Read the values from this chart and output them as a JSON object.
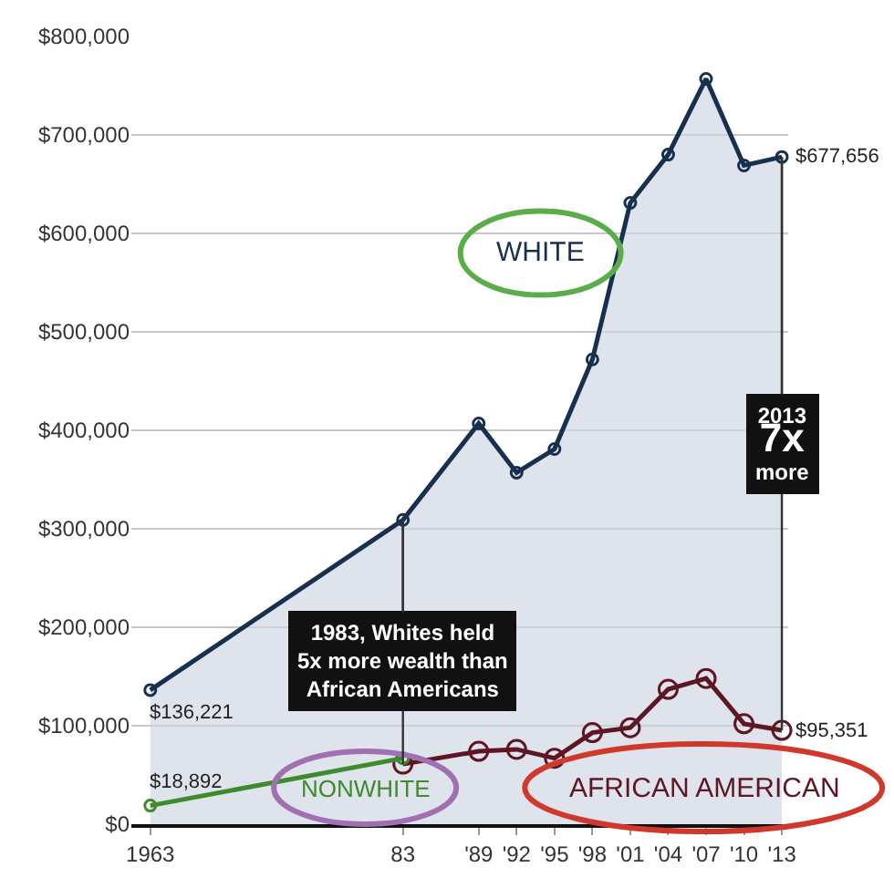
{
  "chart_data": {
    "type": "line",
    "legend": false,
    "grid": "y",
    "marker": "circle",
    "xlim": [
      1961.5,
      2013.5
    ],
    "xticks": [
      {
        "value": 1963,
        "label": "1963"
      },
      {
        "value": 1983,
        "label": "83"
      },
      {
        "value": 1989,
        "label": "'89"
      },
      {
        "value": 1992,
        "label": "'92"
      },
      {
        "value": 1995,
        "label": "'95"
      },
      {
        "value": 1998,
        "label": "'98"
      },
      {
        "value": 2001,
        "label": "'01"
      },
      {
        "value": 2004,
        "label": "'04"
      },
      {
        "value": 2007,
        "label": "'07"
      },
      {
        "value": 2010,
        "label": "'10"
      },
      {
        "value": 2013,
        "label": "'13"
      }
    ],
    "ylim": [
      0,
      800000
    ],
    "yticks": [
      {
        "value": 0,
        "label": "$0"
      },
      {
        "value": 100000,
        "label": "$100,000"
      },
      {
        "value": 200000,
        "label": "$200,000"
      },
      {
        "value": 300000,
        "label": "$300,000"
      },
      {
        "value": 400000,
        "label": "$400,000"
      },
      {
        "value": 500000,
        "label": "$500,000"
      },
      {
        "value": 600000,
        "label": "$600,000"
      },
      {
        "value": 700000,
        "label": "$700,000"
      },
      {
        "value": 800000,
        "label": "$800,000"
      }
    ],
    "series": [
      {
        "name": "WHITE",
        "type": "area",
        "color": "#17304f",
        "x": [
          1963,
          1983,
          1989,
          1992,
          1995,
          1998,
          2001,
          2004,
          2007,
          2010,
          2013
        ],
        "values": [
          136221,
          309000,
          407000,
          357000,
          381000,
          472000,
          631000,
          680000,
          757000,
          669000,
          677656
        ]
      },
      {
        "name": "NONWHITE",
        "color": "#3d8b2c",
        "x": [
          1963,
          1983
        ],
        "values": [
          18892,
          67000
        ]
      },
      {
        "name": "AFRICAN AMERICAN",
        "color": "#5e1524",
        "x": [
          1983,
          1989,
          1992,
          1995,
          1998,
          2001,
          2004,
          2007,
          2010,
          2013
        ],
        "values": [
          61000,
          74000,
          76000,
          67000,
          93000,
          98000,
          137000,
          148000,
          102000,
          95351
        ]
      }
    ],
    "annotations": [
      {
        "text": "$136,221",
        "x": 1963,
        "y": 136221
      },
      {
        "text": "$18,892",
        "x": 1963,
        "y": 18892
      },
      {
        "text": "$677,656",
        "x": 2013,
        "y": 677656
      },
      {
        "text": "$95,351",
        "x": 2013,
        "y": 95351
      },
      {
        "text": "1983, Whites held\n5x more wealth than\nAfrican Americans",
        "x": 1983,
        "y": 309000
      },
      {
        "text": "2013\n7x\nmore",
        "x": 2013,
        "y": 677656
      }
    ]
  }
}
